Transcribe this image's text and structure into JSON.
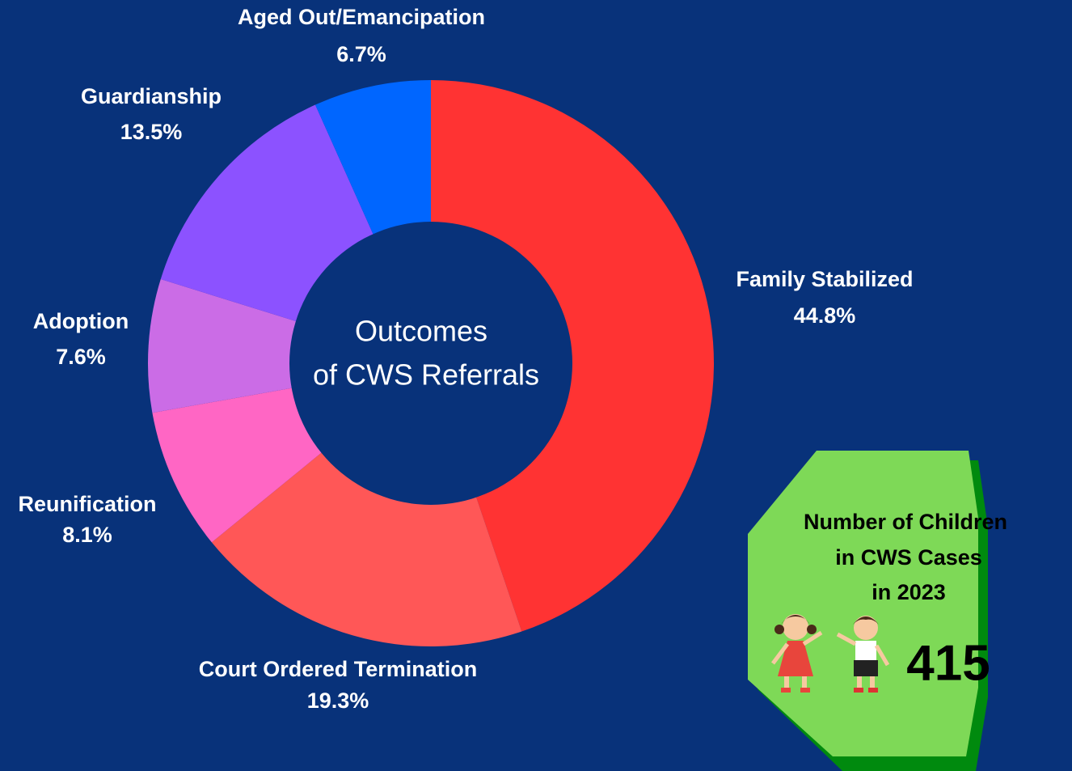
{
  "chart_data": {
    "type": "donut",
    "title_lines": [
      "Outcomes",
      "of CWS Referrals"
    ],
    "categories": [
      "Family Stabilized",
      "Court Ordered Termination",
      "Reunification",
      "Adoption",
      "Guardianship",
      "Aged Out/Emancipation"
    ],
    "values": [
      44.8,
      19.3,
      8.1,
      7.6,
      13.5,
      6.7
    ],
    "value_labels": [
      "44.8%",
      "19.3%",
      "8.1%",
      "7.6%",
      "13.5%",
      "6.7%"
    ],
    "colors": [
      "#ff3333",
      "#ff5757",
      "#ff66c4",
      "#cb6ce6",
      "#8c52ff",
      "#0066ff"
    ]
  },
  "info_box": {
    "lines": [
      "Number of Children",
      "in CWS Cases",
      "in 2023"
    ],
    "value": 415
  }
}
